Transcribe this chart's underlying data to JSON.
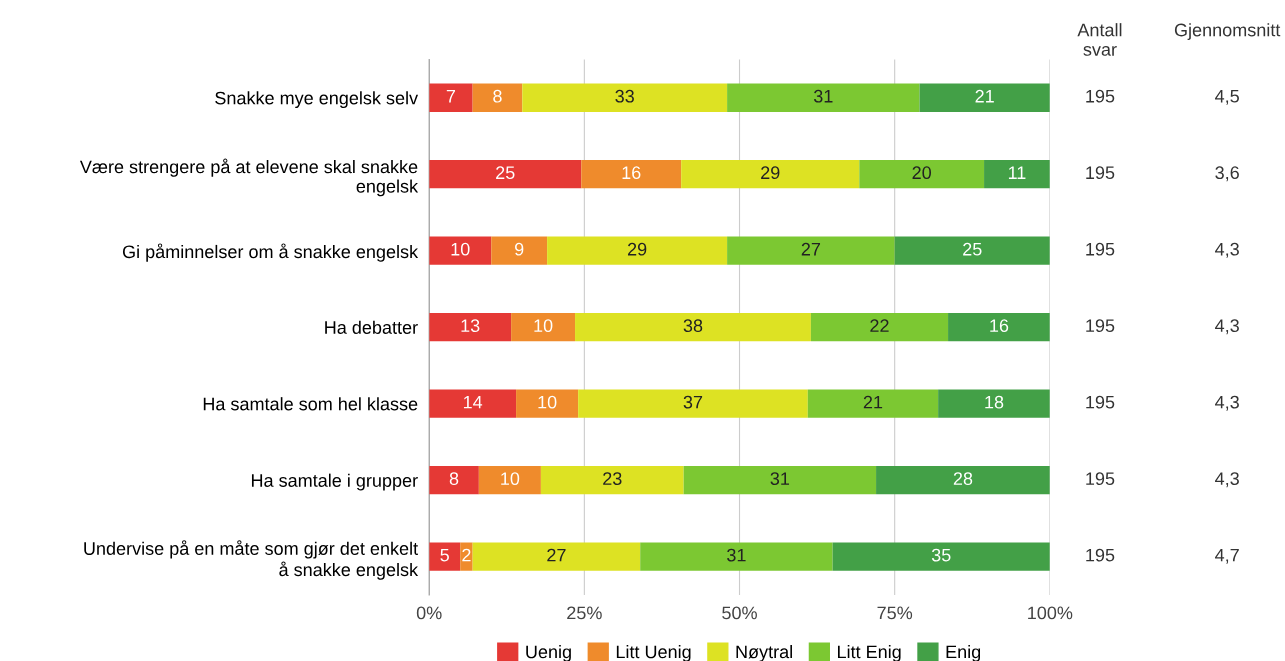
{
  "chart_data": {
    "type": "bar",
    "orientation": "horizontal",
    "stacked": true,
    "categories": [
      "Snakke mye engelsk selv",
      "Være strengere på at elevene skal snakke\nengelsk",
      "Gi påminnelser om å snakke engelsk",
      "Ha debatter",
      "Ha samtale som hel klasse",
      "Ha samtale i grupper",
      "Undervise på en måte som gjør det enkelt\nå snakke engelsk"
    ],
    "series": [
      {
        "name": "Uenig",
        "color": "#e53935",
        "values": [
          7,
          24.5,
          10,
          13.2,
          14,
          8,
          5
        ],
        "value_labels": [
          "7",
          "25",
          "10",
          "13",
          "14",
          "8",
          "5"
        ]
      },
      {
        "name": "Litt Uenig",
        "color": "#ef8b2c",
        "values": [
          8,
          16.1,
          9,
          10.3,
          10,
          10,
          2
        ],
        "value_labels": [
          "8",
          "16",
          "9",
          "10",
          "10",
          "10",
          "2"
        ]
      },
      {
        "name": "Nøytral",
        "color": "#dde223",
        "values": [
          33,
          28.7,
          29,
          38.0,
          37,
          23,
          27
        ],
        "value_labels": [
          "33",
          "29",
          "29",
          "38",
          "37",
          "23",
          "27"
        ]
      },
      {
        "name": "Litt Enig",
        "color": "#7cc832",
        "values": [
          31,
          20.1,
          27,
          22.1,
          21,
          31,
          31
        ],
        "value_labels": [
          "31",
          "20",
          "27",
          "22",
          "21",
          "31",
          "31"
        ]
      },
      {
        "name": "Enig",
        "color": "#43a047",
        "values": [
          21,
          10.6,
          25,
          16.4,
          18,
          28,
          35
        ],
        "value_labels": [
          "21",
          "11",
          "25",
          "16",
          "18",
          "28",
          "35"
        ]
      }
    ],
    "xlim": [
      0,
      100
    ],
    "xticks": [
      {
        "value": 0,
        "label": "0%"
      },
      {
        "value": 25,
        "label": "25%"
      },
      {
        "value": 50,
        "label": "50%"
      },
      {
        "value": 75,
        "label": "75%"
      },
      {
        "value": 100,
        "label": "100%"
      }
    ],
    "grid": "x",
    "legend": "bottom",
    "annotations": [
      "Antall\nsvar",
      "Gjennomsnitt",
      "195",
      "4,5",
      "195",
      "3,6",
      "195",
      "4,3",
      "195",
      "4,3",
      "195",
      "4,3",
      "195",
      "4,3",
      "195",
      "4,7"
    ]
  }
}
